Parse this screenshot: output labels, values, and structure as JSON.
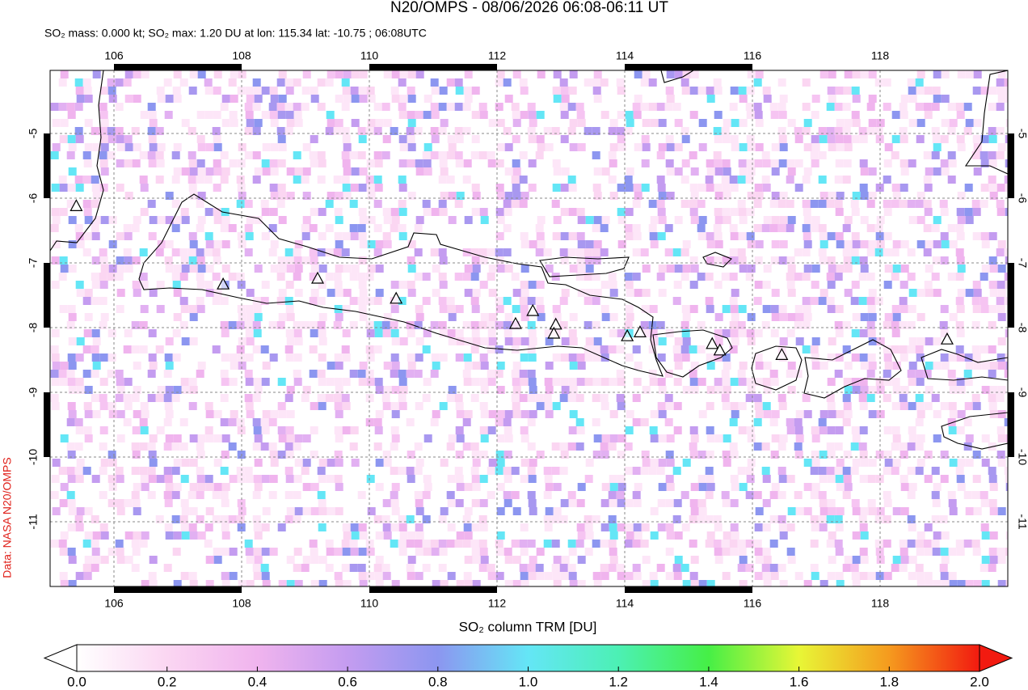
{
  "chart_data": {
    "type": "map",
    "title": "N20/OMPS - 08/06/2026 06:08-06:11 UT",
    "subtitle": "SO₂ mass: 0.000 kt; SO₂ max: 1.20 DU at lon: 115.34 lat: -10.75 ; 06:08UTC",
    "side_note": "Data: NASA N20/OMPS",
    "xlim": [
      105,
      120
    ],
    "ylim": [
      -12,
      -4.025
    ],
    "xticks": [
      106,
      108,
      110,
      112,
      114,
      116,
      118
    ],
    "yticks": [
      -11,
      -10,
      -9,
      -8,
      -7,
      -6,
      -5
    ],
    "grid": true,
    "volcanoes": {
      "lon": [
        105.41,
        107.71,
        109.19,
        110.42,
        112.29,
        112.56,
        112.92,
        112.89,
        114.04,
        114.24,
        115.37,
        115.49,
        116.46,
        119.05
      ],
      "lat": [
        -6.13,
        -7.34,
        -7.25,
        -7.56,
        -7.95,
        -7.75,
        -7.96,
        -8.1,
        -8.14,
        -8.08,
        -8.26,
        -8.36,
        -8.43,
        -8.19
      ]
    },
    "colorbar": {
      "label": "SO₂ column TRM [DU]",
      "lim": [
        0,
        2
      ],
      "ticks": [
        {
          "value": 0,
          "label": "0.0"
        },
        {
          "value": 0.2,
          "label": "0.2"
        },
        {
          "value": 0.4,
          "label": "0.4"
        },
        {
          "value": 0.6,
          "label": "0.6"
        },
        {
          "value": 0.8,
          "label": "0.8"
        },
        {
          "value": 1,
          "label": "1.0"
        },
        {
          "value": 1.2,
          "label": "1.2"
        },
        {
          "value": 1.4,
          "label": "1.4"
        },
        {
          "value": 1.6,
          "label": "1.6"
        },
        {
          "value": 1.8,
          "label": "1.8"
        },
        {
          "value": 2,
          "label": "2.0"
        }
      ]
    }
  }
}
